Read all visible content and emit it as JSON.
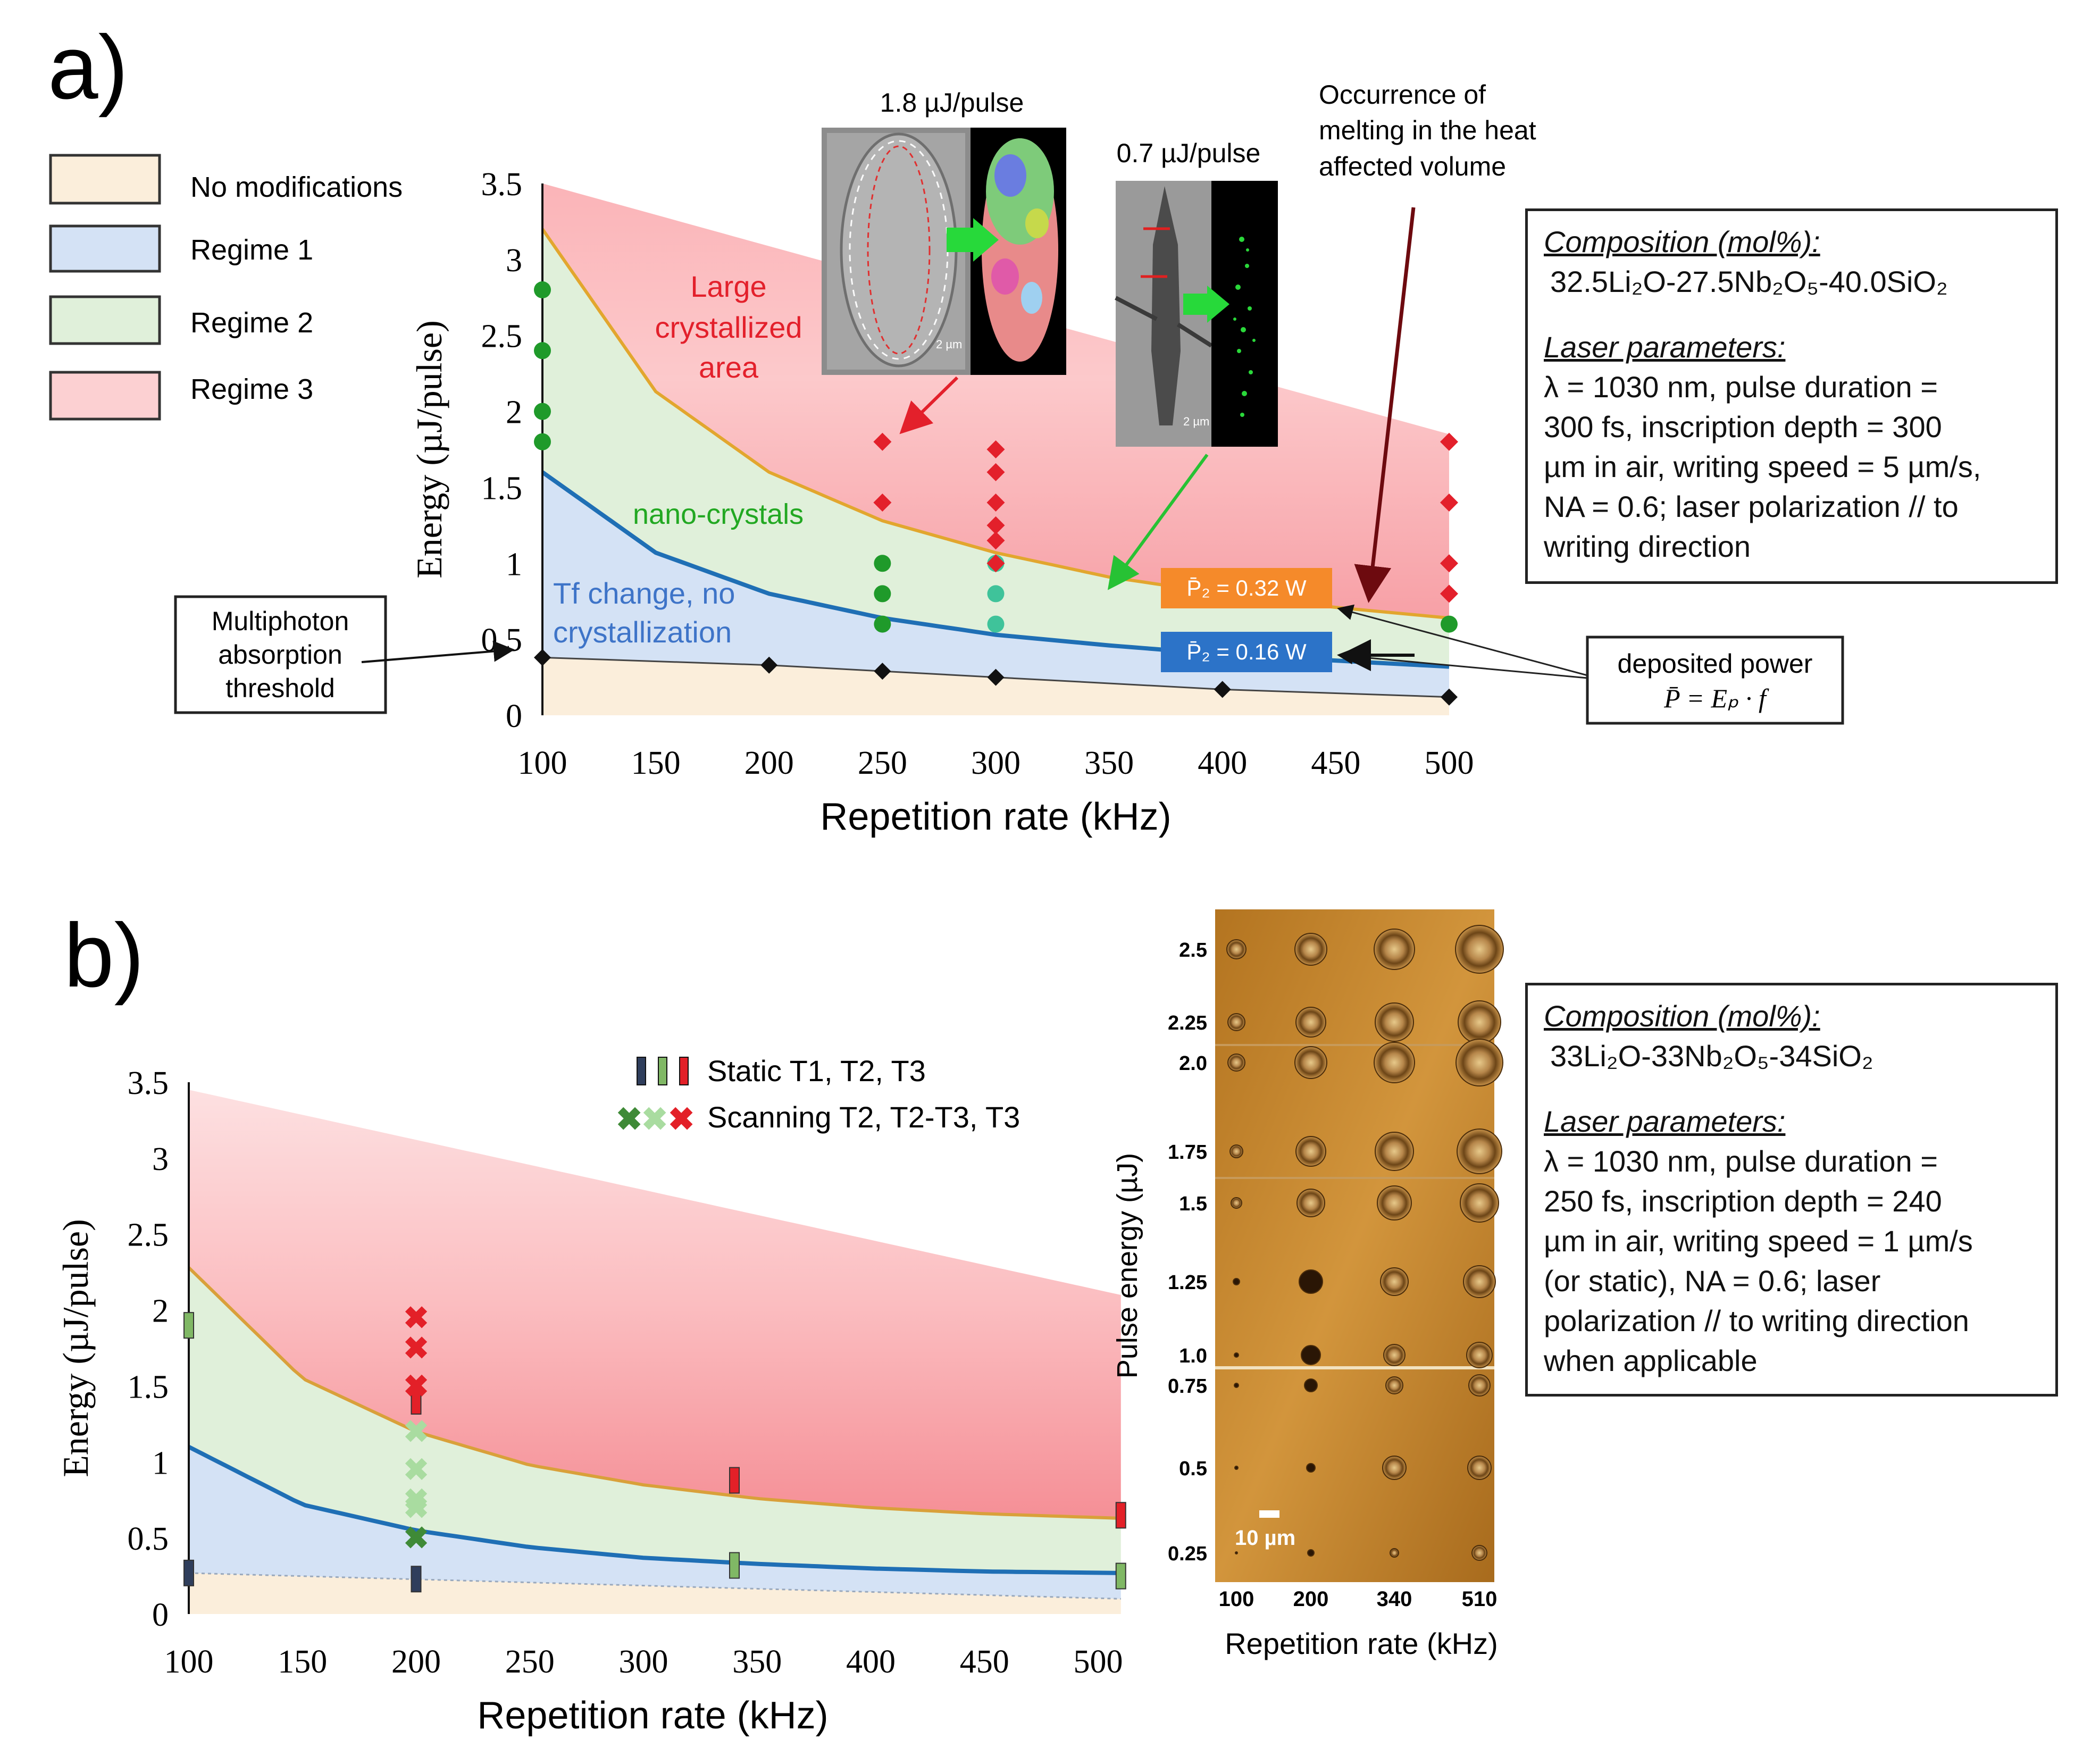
{
  "panel_a": {
    "label": "a)",
    "legend": [
      {
        "name": "No modifications",
        "color": "#fbeedb"
      },
      {
        "name": "Regime 1",
        "color": "#d4e2f5"
      },
      {
        "name": "Regime 2",
        "color": "#e0f0da"
      },
      {
        "name": "Regime 3",
        "color": "#fcd0d2"
      }
    ],
    "region_labels": {
      "large": [
        "Large",
        "crystallized",
        "area"
      ],
      "nano": "nano-crystals",
      "tf": [
        "Tf change, no",
        "crystallization"
      ]
    },
    "annotations": {
      "multiphoton": [
        "Multiphoton",
        "absorption",
        "threshold"
      ],
      "deposited": [
        "deposited power",
        "P̄ = Eₚ · f"
      ],
      "occurrence": [
        "Occurrence of",
        "melting in the heat",
        "affected volume"
      ],
      "p2_orange": "P̄₂ = 0.32 W",
      "p2_blue": "P̄₂ = 0.16 W",
      "micro1_label": "1.8 µJ/pulse",
      "micro2_label": "0.7 µJ/pulse",
      "scale_text": "2 µm"
    },
    "info": {
      "comp_header": "Composition (mol%):",
      "comp_value": "32.5Li₂O-27.5Nb₂O₅-40.0SiO₂",
      "laser_header": "Laser parameters:",
      "laser_lines": [
        "λ = 1030 nm, pulse duration =",
        "300 fs, inscription depth = 300",
        "µm in air, writing speed = 5 µm/s,",
        "NA = 0.6; laser polarization // to",
        "writing direction"
      ]
    }
  },
  "panel_b": {
    "label": "b)",
    "legend": {
      "static": "Static T1, T2, T3",
      "scanning": "Scanning T2, T2-T3, T3"
    },
    "micro": {
      "ylabel": "Pulse energy (µJ)",
      "xlabel": "Repetition rate (kHz)",
      "yticks": [
        "2.5",
        "2.25",
        "2.0",
        "1.75",
        "1.5",
        "1.25",
        "1.0",
        "0.75",
        "0.5",
        "0.25"
      ],
      "xticks": [
        "100",
        "200",
        "340",
        "510"
      ],
      "scale": "10 µm"
    },
    "info": {
      "comp_header": "Composition (mol%):",
      "comp_value": "33Li₂O-33Nb₂O₅-34SiO₂",
      "laser_header": "Laser parameters:",
      "laser_lines": [
        "λ = 1030 nm, pulse duration =",
        "250 fs, inscription depth = 240",
        "µm in air, writing speed = 1 µm/s",
        "(or static), NA = 0.6; laser",
        "polarization // to writing direction",
        "when applicable"
      ]
    }
  },
  "chart_data": [
    {
      "type": "area",
      "title": "",
      "xlabel": "Repetition rate (kHz)",
      "ylabel": "Energy (µJ/pulse)",
      "xlim": [
        100,
        500
      ],
      "ylim": [
        0,
        3.5
      ],
      "xticks": [
        100,
        150,
        200,
        250,
        300,
        350,
        400,
        450,
        500
      ],
      "yticks": [
        0,
        0.5,
        1,
        1.5,
        2,
        2.5,
        3,
        3.5
      ],
      "xtick_labels": [
        "100",
        "150",
        "200",
        "250",
        "300",
        "350",
        "400",
        "450",
        "500"
      ],
      "ytick_labels": [
        "0",
        "0.5",
        "1",
        "1.5",
        "2",
        "2.5",
        "3",
        "3.5"
      ],
      "series": [
        {
          "name": "Regime 3 upper bound",
          "x": [
            100,
            500
          ],
          "values": [
            3.5,
            1.85
          ]
        },
        {
          "name": "Regime 2/3 boundary (P = 0.32 W)",
          "x": [
            100,
            150,
            200,
            250,
            300,
            350,
            400,
            450,
            500
          ],
          "values": [
            3.2,
            2.13,
            1.6,
            1.28,
            1.07,
            0.91,
            0.8,
            0.71,
            0.64
          ]
        },
        {
          "name": "Regime 1/2 boundary (P = 0.16 W)",
          "x": [
            100,
            150,
            200,
            250,
            300,
            350,
            400,
            450,
            500
          ],
          "values": [
            1.6,
            1.07,
            0.8,
            0.64,
            0.53,
            0.46,
            0.4,
            0.36,
            0.32
          ]
        },
        {
          "name": "Multiphoton absorption threshold",
          "x": [
            100,
            200,
            250,
            300,
            400,
            500
          ],
          "values": [
            0.38,
            0.33,
            0.29,
            0.25,
            0.17,
            0.12
          ]
        },
        {
          "name": "Regime 2 observations",
          "x": [
            100,
            100,
            100,
            100,
            250,
            250,
            250,
            300,
            300,
            300,
            500
          ],
          "values": [
            2.8,
            2.4,
            2.0,
            1.8,
            1.0,
            0.8,
            0.6,
            1.0,
            0.8,
            0.6,
            0.6
          ]
        },
        {
          "name": "Regime 3 observations",
          "x": [
            250,
            250,
            300,
            300,
            300,
            300,
            300,
            300,
            500,
            500,
            500,
            500
          ],
          "values": [
            1.8,
            1.4,
            1.75,
            1.6,
            1.4,
            1.25,
            1.15,
            1.0,
            1.8,
            1.4,
            1.0,
            0.8
          ]
        }
      ]
    },
    {
      "type": "area",
      "title": "",
      "xlabel": "Repetition rate (kHz)",
      "ylabel": "Energy (µJ/pulse)",
      "xlim": [
        100,
        510
      ],
      "ylim": [
        0,
        3.5
      ],
      "xticks": [
        100,
        150,
        200,
        250,
        300,
        350,
        400,
        450,
        500
      ],
      "yticks": [
        0,
        0.5,
        1,
        1.5,
        2,
        2.5,
        3,
        3.5
      ],
      "xtick_labels": [
        "100",
        "150",
        "200",
        "250",
        "300",
        "350",
        "400",
        "450",
        "500"
      ],
      "ytick_labels": [
        "0",
        "0.5",
        "1",
        "1.5",
        "2",
        "2.5",
        "3",
        "3.5"
      ],
      "series": [
        {
          "name": "Regime 3 upper bound",
          "x": [
            100,
            510
          ],
          "values": [
            3.45,
            2.1
          ]
        },
        {
          "name": "T2/T3 boundary",
          "x": [
            100,
            150,
            200,
            250,
            300,
            350,
            400,
            450,
            510
          ],
          "values": [
            2.28,
            1.55,
            1.2,
            0.98,
            0.85,
            0.76,
            0.7,
            0.66,
            0.63
          ]
        },
        {
          "name": "T1/T2 boundary",
          "x": [
            100,
            150,
            200,
            250,
            300,
            350,
            400,
            450,
            510
          ],
          "values": [
            1.1,
            0.72,
            0.55,
            0.44,
            0.37,
            0.33,
            0.3,
            0.28,
            0.27
          ]
        },
        {
          "name": "Static T1",
          "x": [
            100,
            200
          ],
          "values": [
            0.27,
            0.23
          ]
        },
        {
          "name": "Static T2",
          "x": [
            100,
            340,
            510
          ],
          "values": [
            1.9,
            0.32,
            0.25
          ]
        },
        {
          "name": "Static T3",
          "x": [
            200,
            340,
            510
          ],
          "values": [
            1.4,
            0.88,
            0.65
          ]
        },
        {
          "name": "Scanning T2",
          "x": [
            200
          ],
          "values": [
            0.5
          ]
        },
        {
          "name": "Scanning T2-T3",
          "x": [
            200,
            200,
            200,
            200
          ],
          "values": [
            0.7,
            0.95,
            1.2,
            0.75
          ]
        },
        {
          "name": "Scanning T3",
          "x": [
            200,
            200,
            200
          ],
          "values": [
            1.5,
            1.75,
            1.95
          ]
        }
      ]
    }
  ]
}
